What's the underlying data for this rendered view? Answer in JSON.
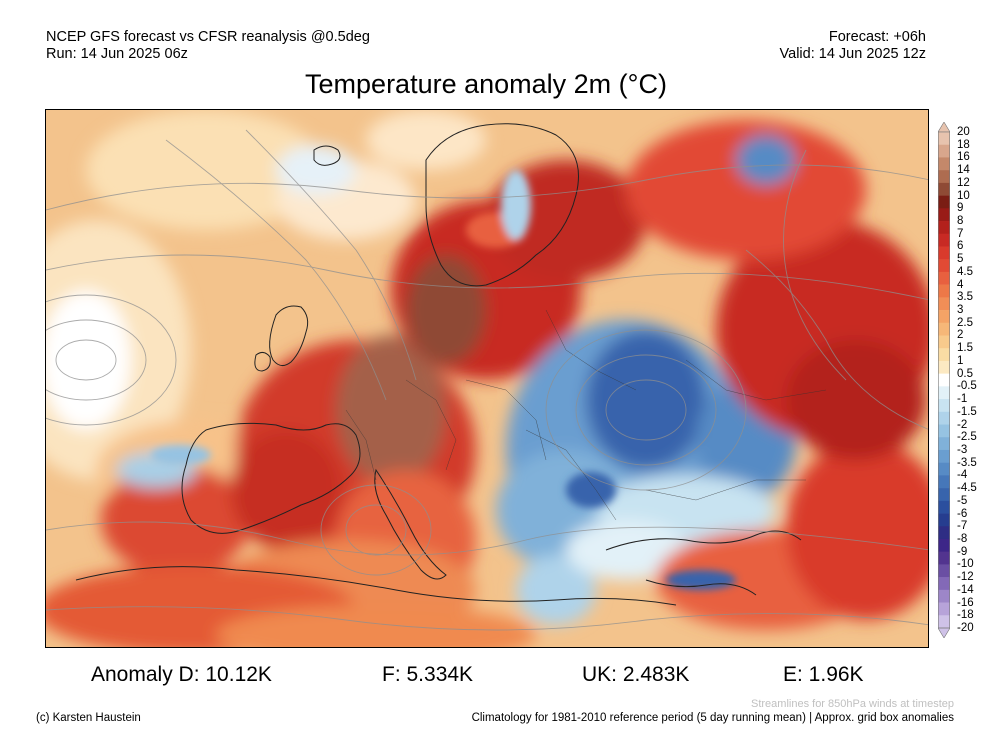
{
  "header": {
    "model_line": "NCEP GFS forecast vs CFSR reanalysis @0.5deg",
    "run_line": "Run: 14 Jun 2025 06z",
    "forecast_line": "Forecast: +06h",
    "valid_line": "Valid: 14 Jun 2025 12z"
  },
  "title": "Temperature anomaly 2m (°C)",
  "colorbar": {
    "labels": [
      "20",
      "18",
      "16",
      "14",
      "12",
      "10",
      "9",
      "8",
      "7",
      "6",
      "5",
      "4.5",
      "4",
      "3.5",
      "3",
      "2.5",
      "2",
      "1.5",
      "1",
      "0.5",
      "-0.5",
      "-1",
      "-1.5",
      "-2",
      "-2.5",
      "-3",
      "-3.5",
      "-4",
      "-4.5",
      "-5",
      "-6",
      "-7",
      "-8",
      "-9",
      "-10",
      "-12",
      "-14",
      "-16",
      "-18",
      "-20"
    ],
    "colors": [
      "#e7c3ae",
      "#d8a68c",
      "#c4886a",
      "#ae6c50",
      "#8f4a35",
      "#7a1d14",
      "#991b17",
      "#b3211c",
      "#c82a24",
      "#d93a2c",
      "#e24a34",
      "#e8603f",
      "#ed7848",
      "#f18e57",
      "#f4a366",
      "#f6b778",
      "#f8ca8c",
      "#fadca4",
      "#fce9c2",
      "#ffffff",
      "#e2f1f8",
      "#c8e3f1",
      "#afd3ea",
      "#96c3e2",
      "#80b1d9",
      "#6a9ed0",
      "#578bc5",
      "#4677b9",
      "#3864ac",
      "#2b4f9e",
      "#263d8f",
      "#2e2d84",
      "#3d2688",
      "#52348f",
      "#6a4fa3",
      "#8369b7",
      "#9d86c8",
      "#b7a3d9",
      "#cfc2e8"
    ]
  },
  "stats": {
    "D": "Anomaly D: 10.12K",
    "F": "F: 5.334K",
    "UK": "UK: 2.483K",
    "E": "E: 1.96K"
  },
  "footer": {
    "streamlines_note": "Streamlines for 850hPa winds at timestep",
    "credit": "(c) Karsten Haustein",
    "climatology_note": "Climatology for 1981-2010 reference period (5 day running mean) | Approx. grid box anomalies"
  }
}
